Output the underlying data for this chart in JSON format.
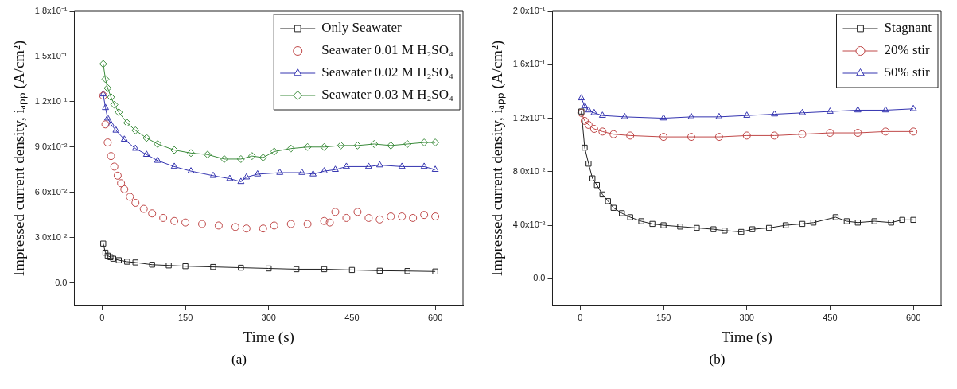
{
  "chart_data": [
    {
      "type": "line",
      "xlabel": "Time (s)",
      "ylabel": "Impressed current density, iₐₚₚ (A/cm²)",
      "annotations": [
        "(a)"
      ],
      "legend": "top right",
      "grid": false,
      "xlim": [
        -50,
        650
      ],
      "xticks": [
        0,
        150,
        300,
        450,
        600
      ],
      "ylim": [
        -0.015,
        0.18
      ],
      "yticks": [
        {
          "value": 0,
          "label": "0.0"
        },
        {
          "value": 0.03,
          "label": "3.0x10⁻²"
        },
        {
          "value": 0.06,
          "label": "6.0x10⁻²"
        },
        {
          "value": 0.09,
          "label": "9.0x10⁻²"
        },
        {
          "value": 0.12,
          "label": "1.2x10⁻¹"
        },
        {
          "value": 0.15,
          "label": "1.5x10⁻¹"
        },
        {
          "value": 0.18,
          "label": "1.8x10⁻¹"
        }
      ],
      "series": [
        {
          "name": "Only Seawater",
          "color": "#222222",
          "marker": "square",
          "x": [
            2,
            6,
            10,
            15,
            20,
            30,
            45,
            60,
            90,
            120,
            150,
            200,
            250,
            300,
            350,
            400,
            450,
            500,
            550,
            600
          ],
          "values": [
            0.026,
            0.02,
            0.018,
            0.017,
            0.016,
            0.015,
            0.014,
            0.0135,
            0.012,
            0.0115,
            0.011,
            0.0105,
            0.01,
            0.0095,
            0.009,
            0.009,
            0.0085,
            0.008,
            0.0078,
            0.0075
          ]
        },
        {
          "name": "Seawater 0.01 M H₂SO₄",
          "type": "scatter",
          "color": "#c04848",
          "marker": "circle",
          "x": [
            2,
            6,
            10,
            16,
            22,
            28,
            34,
            40,
            50,
            60,
            75,
            90,
            110,
            130,
            150,
            180,
            210,
            240,
            260,
            290,
            310,
            340,
            370,
            400,
            410,
            420,
            440,
            460,
            480,
            500,
            520,
            540,
            560,
            580,
            600
          ],
          "values": [
            0.124,
            0.105,
            0.093,
            0.084,
            0.077,
            0.071,
            0.066,
            0.062,
            0.057,
            0.053,
            0.049,
            0.046,
            0.043,
            0.041,
            0.04,
            0.039,
            0.038,
            0.037,
            0.036,
            0.036,
            0.038,
            0.039,
            0.039,
            0.041,
            0.04,
            0.047,
            0.043,
            0.047,
            0.043,
            0.042,
            0.044,
            0.044,
            0.043,
            0.045,
            0.044
          ]
        },
        {
          "name": "Seawater 0.02 M H₂SO₄",
          "color": "#3434b0",
          "marker": "triangle",
          "x": [
            2,
            6,
            10,
            16,
            25,
            40,
            60,
            80,
            100,
            130,
            160,
            200,
            230,
            250,
            260,
            280,
            320,
            360,
            380,
            400,
            420,
            440,
            480,
            500,
            540,
            580,
            600
          ],
          "values": [
            0.125,
            0.116,
            0.109,
            0.105,
            0.101,
            0.095,
            0.089,
            0.085,
            0.081,
            0.077,
            0.074,
            0.071,
            0.069,
            0.067,
            0.07,
            0.072,
            0.073,
            0.073,
            0.072,
            0.074,
            0.075,
            0.077,
            0.077,
            0.078,
            0.077,
            0.077,
            0.075
          ]
        },
        {
          "name": "Seawater 0.03 M H₂SO₄",
          "color": "#3c8c3c",
          "marker": "diamond",
          "x": [
            2,
            6,
            10,
            16,
            22,
            30,
            45,
            60,
            80,
            100,
            130,
            160,
            190,
            220,
            250,
            270,
            290,
            310,
            340,
            370,
            400,
            430,
            460,
            490,
            520,
            550,
            580,
            600
          ],
          "values": [
            0.145,
            0.135,
            0.129,
            0.123,
            0.118,
            0.113,
            0.106,
            0.101,
            0.096,
            0.092,
            0.088,
            0.086,
            0.085,
            0.082,
            0.082,
            0.084,
            0.083,
            0.087,
            0.089,
            0.09,
            0.09,
            0.091,
            0.091,
            0.092,
            0.091,
            0.092,
            0.093,
            0.093
          ]
        }
      ]
    },
    {
      "type": "line",
      "xlabel": "Time (s)",
      "ylabel": "Impressed current density, iₐₚₚ (A/cm²)",
      "annotations": [
        "(b)"
      ],
      "legend": "top right",
      "grid": false,
      "xlim": [
        -50,
        650
      ],
      "xticks": [
        0,
        150,
        300,
        450,
        600
      ],
      "ylim": [
        -0.02,
        0.2
      ],
      "yticks": [
        {
          "value": 0,
          "label": "0.0"
        },
        {
          "value": 0.04,
          "label": "4.0x10⁻²"
        },
        {
          "value": 0.08,
          "label": "8.0x10⁻²"
        },
        {
          "value": 0.12,
          "label": "1.2x10⁻¹"
        },
        {
          "value": 0.16,
          "label": "1.6x10⁻¹"
        },
        {
          "value": 0.2,
          "label": "2.0x10⁻¹"
        }
      ],
      "series": [
        {
          "name": "Stagnant",
          "color": "#222222",
          "marker": "square",
          "x": [
            2,
            8,
            15,
            22,
            30,
            40,
            50,
            60,
            75,
            90,
            110,
            130,
            150,
            180,
            210,
            240,
            260,
            290,
            310,
            340,
            370,
            400,
            420,
            460,
            480,
            500,
            530,
            560,
            580,
            600
          ],
          "values": [
            0.125,
            0.098,
            0.086,
            0.075,
            0.07,
            0.063,
            0.058,
            0.053,
            0.049,
            0.046,
            0.043,
            0.041,
            0.04,
            0.039,
            0.038,
            0.037,
            0.036,
            0.035,
            0.037,
            0.038,
            0.04,
            0.041,
            0.042,
            0.046,
            0.043,
            0.042,
            0.043,
            0.042,
            0.044,
            0.044
          ]
        },
        {
          "name": "20% stir",
          "color": "#c04848",
          "marker": "circle",
          "x": [
            2,
            8,
            15,
            25,
            40,
            60,
            90,
            150,
            200,
            250,
            300,
            350,
            400,
            450,
            500,
            550,
            600
          ],
          "values": [
            0.124,
            0.118,
            0.115,
            0.112,
            0.11,
            0.108,
            0.107,
            0.106,
            0.106,
            0.106,
            0.107,
            0.107,
            0.108,
            0.109,
            0.109,
            0.11,
            0.11
          ]
        },
        {
          "name": "50% stir",
          "color": "#3434b0",
          "marker": "triangle",
          "x": [
            2,
            8,
            15,
            25,
            40,
            80,
            150,
            200,
            250,
            300,
            350,
            400,
            450,
            500,
            550,
            600
          ],
          "values": [
            0.135,
            0.129,
            0.126,
            0.124,
            0.122,
            0.121,
            0.12,
            0.121,
            0.121,
            0.122,
            0.123,
            0.124,
            0.125,
            0.126,
            0.126,
            0.127
          ]
        }
      ]
    }
  ]
}
